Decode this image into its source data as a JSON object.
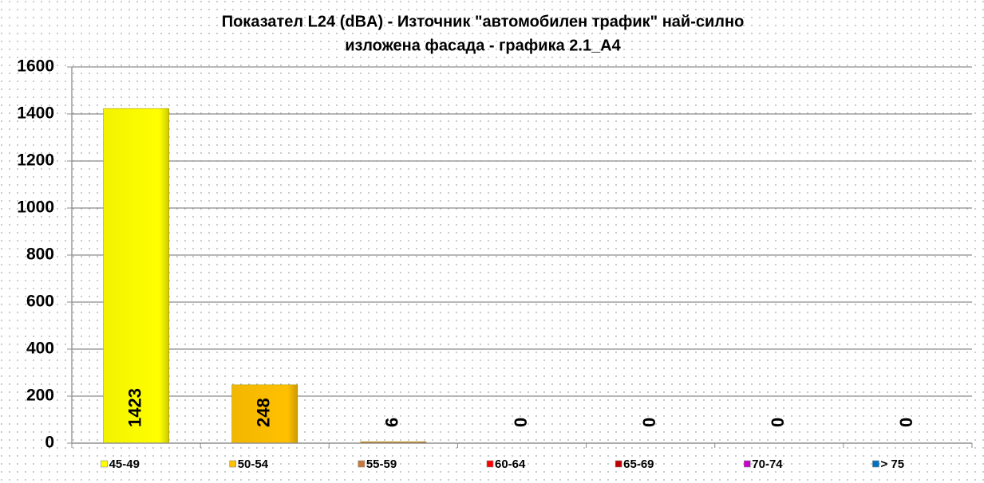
{
  "chart_data": {
    "type": "bar",
    "title": [
      "Показател L24 (dBA) - Източник \"автомобилен трафик\" най-силно",
      "изложена фасада - графика 2.1_А4"
    ],
    "categories": [
      "45-49",
      "50-54",
      "55-59",
      "60-64",
      "65-69",
      "70-74",
      "> 75"
    ],
    "values": [
      1423,
      248,
      6,
      0,
      0,
      0,
      0
    ],
    "colors": [
      "#ffff00",
      "#ffc000",
      "#c8773a",
      "#ff0000",
      "#c00000",
      "#cc00cc",
      "#0070c0"
    ],
    "ylim": [
      0,
      1600
    ],
    "yticks": [
      0,
      200,
      400,
      600,
      800,
      1000,
      1200,
      1400,
      1600
    ],
    "grid": true
  }
}
